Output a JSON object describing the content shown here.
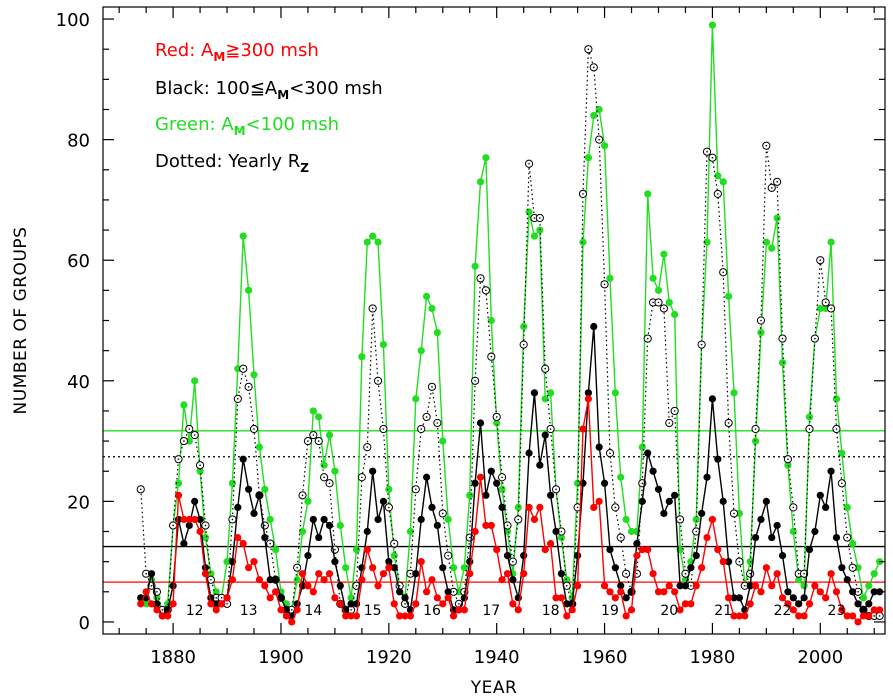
{
  "chart_data": {
    "type": "line",
    "xlabel": "YEAR",
    "ylabel": "NUMBER OF GROUPS",
    "xlim": [
      1867,
      2012
    ],
    "ylim": [
      -2,
      102
    ],
    "xticks": [
      1880,
      1900,
      1920,
      1940,
      1960,
      1980,
      2000
    ],
    "yticks": [
      0,
      20,
      40,
      60,
      80,
      100
    ],
    "grid": false,
    "legend": {
      "position": "top-left",
      "entries": [
        {
          "prefix": "Red: A",
          "sub": "M",
          "suffix": "≧300 msh",
          "color": "#ff0000"
        },
        {
          "prefix": "Black: 100≦A",
          "sub": "M",
          "suffix": "<300 msh",
          "color": "#000000"
        },
        {
          "prefix": "Green: A",
          "sub": "M",
          "suffix": "<100 msh",
          "color": "#22dd22"
        },
        {
          "prefix": "Dotted: Yearly R",
          "sub": "Z",
          "suffix": "",
          "color": "#000000"
        }
      ]
    },
    "cycle_labels": [
      {
        "label": "12",
        "x": 1884
      },
      {
        "label": "13",
        "x": 1894
      },
      {
        "label": "14",
        "x": 1906
      },
      {
        "label": "15",
        "x": 1917
      },
      {
        "label": "16",
        "x": 1928
      },
      {
        "label": "17",
        "x": 1939
      },
      {
        "label": "18",
        "x": 1950
      },
      {
        "label": "19",
        "x": 1961
      },
      {
        "label": "20",
        "x": 1972
      },
      {
        "label": "21",
        "x": 1982
      },
      {
        "label": "22",
        "x": 1993
      },
      {
        "label": "23",
        "x": 2003
      }
    ],
    "hlines": [
      {
        "value": 31.7,
        "color": "#22dd22",
        "style": "solid"
      },
      {
        "value": 27.4,
        "color": "#000000",
        "style": "dotted"
      },
      {
        "value": 12.5,
        "color": "#000000",
        "style": "solid"
      },
      {
        "value": 6.6,
        "color": "#ff0000",
        "style": "solid"
      }
    ],
    "series": [
      {
        "color": "#22dd22",
        "style": "line-dots",
        "x": [
          1874,
          1875,
          1876,
          1877,
          1878,
          1879,
          1880,
          1881,
          1882,
          1883,
          1884,
          1885,
          1886,
          1887,
          1888,
          1889,
          1890,
          1891,
          1892,
          1893,
          1894,
          1895,
          1896,
          1897,
          1898,
          1899,
          1900,
          1901,
          1902,
          1903,
          1904,
          1905,
          1906,
          1907,
          1908,
          1909,
          1910,
          1911,
          1912,
          1913,
          1914,
          1915,
          1916,
          1917,
          1918,
          1919,
          1920,
          1921,
          1922,
          1923,
          1924,
          1925,
          1926,
          1927,
          1928,
          1929,
          1930,
          1931,
          1932,
          1933,
          1934,
          1935,
          1936,
          1937,
          1938,
          1939,
          1940,
          1941,
          1942,
          1943,
          1944,
          1945,
          1946,
          1947,
          1948,
          1949,
          1950,
          1951,
          1952,
          1953,
          1954,
          1955,
          1956,
          1957,
          1958,
          1959,
          1960,
          1961,
          1962,
          1963,
          1964,
          1965,
          1966,
          1967,
          1968,
          1969,
          1970,
          1971,
          1972,
          1973,
          1974,
          1975,
          1976,
          1977,
          1978,
          1979,
          1980,
          1981,
          1982,
          1983,
          1984,
          1985,
          1986,
          1987,
          1988,
          1989,
          1990,
          1991,
          1992,
          1993,
          1994,
          1995,
          1996,
          1997,
          1998,
          1999,
          2000,
          2001,
          2002,
          2003,
          2004,
          2005,
          2006,
          2007,
          2008,
          2009,
          2010,
          2011
        ],
        "y": [
          4,
          3,
          7,
          4,
          2,
          3,
          16,
          23,
          36,
          30,
          40,
          25,
          14,
          8,
          5,
          4,
          10,
          23,
          42,
          64,
          55,
          41,
          29,
          22,
          17,
          12,
          5,
          3,
          2,
          7,
          15,
          20,
          35,
          34,
          26,
          31,
          25,
          16,
          9,
          4,
          12,
          44,
          63,
          64,
          63,
          46,
          22,
          11,
          6,
          4,
          15,
          37,
          45,
          54,
          52,
          48,
          30,
          17,
          9,
          5,
          9,
          21,
          59,
          73,
          77,
          50,
          33,
          22,
          15,
          8,
          19,
          49,
          68,
          64,
          65,
          37,
          38,
          22,
          14,
          7,
          4,
          23,
          63,
          77,
          84,
          85,
          79,
          57,
          38,
          24,
          17,
          15,
          15,
          29,
          71,
          57,
          55,
          61,
          53,
          51,
          12,
          7,
          10,
          17,
          46,
          63,
          99,
          74,
          73,
          54,
          38,
          18,
          6,
          10,
          30,
          48,
          63,
          62,
          67,
          43,
          26,
          15,
          7,
          6,
          34,
          47,
          52,
          52,
          63,
          37,
          28,
          19,
          13,
          9,
          4,
          6,
          8,
          10
        ]
      },
      {
        "color": "#000000",
        "style": "dotted-circles",
        "x": [
          1874,
          1875,
          1876,
          1877,
          1878,
          1879,
          1880,
          1881,
          1882,
          1883,
          1884,
          1885,
          1886,
          1887,
          1888,
          1889,
          1890,
          1891,
          1892,
          1893,
          1894,
          1895,
          1896,
          1897,
          1898,
          1899,
          1900,
          1901,
          1902,
          1903,
          1904,
          1905,
          1906,
          1907,
          1908,
          1909,
          1910,
          1911,
          1912,
          1913,
          1914,
          1915,
          1916,
          1917,
          1918,
          1919,
          1920,
          1921,
          1922,
          1923,
          1924,
          1925,
          1926,
          1927,
          1928,
          1929,
          1930,
          1931,
          1932,
          1933,
          1934,
          1935,
          1936,
          1937,
          1938,
          1939,
          1940,
          1941,
          1942,
          1943,
          1944,
          1945,
          1946,
          1947,
          1948,
          1949,
          1950,
          1951,
          1952,
          1953,
          1954,
          1955,
          1956,
          1957,
          1958,
          1959,
          1960,
          1961,
          1962,
          1963,
          1964,
          1965,
          1966,
          1967,
          1968,
          1969,
          1970,
          1971,
          1972,
          1973,
          1974,
          1975,
          1976,
          1977,
          1978,
          1979,
          1980,
          1981,
          1982,
          1983,
          1984,
          1985,
          1986,
          1987,
          1988,
          1989,
          1990,
          1991,
          1992,
          1993,
          1994,
          1995,
          1996,
          1997,
          1998,
          1999,
          2000,
          2001,
          2002,
          2003,
          2004,
          2005,
          2006,
          2007,
          2008,
          2009,
          2010,
          2011
        ],
        "y": [
          22,
          8,
          6,
          5,
          2,
          2,
          16,
          27,
          30,
          32,
          31,
          26,
          16,
          7,
          4,
          4,
          3,
          17,
          37,
          42,
          39,
          32,
          21,
          16,
          13,
          7,
          4,
          2,
          2,
          9,
          21,
          30,
          31,
          30,
          24,
          23,
          12,
          3,
          2,
          2,
          6,
          24,
          29,
          52,
          40,
          32,
          19,
          13,
          6,
          3,
          8,
          22,
          32,
          34,
          39,
          33,
          18,
          11,
          5,
          3,
          5,
          14,
          40,
          57,
          55,
          44,
          34,
          24,
          16,
          10,
          17,
          46,
          76,
          67,
          67,
          42,
          32,
          22,
          15,
          6,
          3,
          19,
          71,
          95,
          92,
          80,
          56,
          28,
          19,
          14,
          8,
          5,
          8,
          23,
          47,
          53,
          53,
          52,
          33,
          35,
          17,
          8,
          6,
          15,
          46,
          78,
          77,
          71,
          58,
          33,
          18,
          10,
          6,
          8,
          32,
          50,
          79,
          72,
          73,
          47,
          27,
          19,
          8,
          8,
          32,
          47,
          60,
          53,
          52,
          32,
          23,
          14,
          9,
          5,
          2,
          1,
          1,
          1
        ]
      },
      {
        "color": "#000000",
        "style": "line-dots",
        "x": [
          1874,
          1875,
          1876,
          1877,
          1878,
          1879,
          1880,
          1881,
          1882,
          1883,
          1884,
          1885,
          1886,
          1887,
          1888,
          1889,
          1890,
          1891,
          1892,
          1893,
          1894,
          1895,
          1896,
          1897,
          1898,
          1899,
          1900,
          1901,
          1902,
          1903,
          1904,
          1905,
          1906,
          1907,
          1908,
          1909,
          1910,
          1911,
          1912,
          1913,
          1914,
          1915,
          1916,
          1917,
          1918,
          1919,
          1920,
          1921,
          1922,
          1923,
          1924,
          1925,
          1926,
          1927,
          1928,
          1929,
          1930,
          1931,
          1932,
          1933,
          1934,
          1935,
          1936,
          1937,
          1938,
          1939,
          1940,
          1941,
          1942,
          1943,
          1944,
          1945,
          1946,
          1947,
          1948,
          1949,
          1950,
          1951,
          1952,
          1953,
          1954,
          1955,
          1956,
          1957,
          1958,
          1959,
          1960,
          1961,
          1962,
          1963,
          1964,
          1965,
          1966,
          1967,
          1968,
          1969,
          1970,
          1971,
          1972,
          1973,
          1974,
          1975,
          1976,
          1977,
          1978,
          1979,
          1980,
          1981,
          1982,
          1983,
          1984,
          1985,
          1986,
          1987,
          1988,
          1989,
          1990,
          1991,
          1992,
          1993,
          1994,
          1995,
          1996,
          1997,
          1998,
          1999,
          2000,
          2001,
          2002,
          2003,
          2004,
          2005,
          2006,
          2007,
          2008,
          2009,
          2010,
          2011
        ],
        "y": [
          4,
          4,
          8,
          3,
          1,
          2,
          6,
          17,
          13,
          16,
          20,
          17,
          9,
          4,
          3,
          3,
          4,
          10,
          19,
          27,
          22,
          18,
          21,
          14,
          7,
          7,
          4,
          2,
          1,
          3,
          6,
          11,
          17,
          14,
          17,
          16,
          10,
          6,
          2,
          3,
          3,
          9,
          15,
          25,
          17,
          20,
          10,
          9,
          5,
          4,
          2,
          8,
          17,
          24,
          19,
          16,
          9,
          5,
          2,
          2,
          4,
          10,
          23,
          33,
          21,
          25,
          23,
          19,
          11,
          7,
          4,
          11,
          28,
          38,
          26,
          31,
          21,
          15,
          8,
          3,
          3,
          11,
          23,
          38,
          49,
          29,
          23,
          12,
          9,
          6,
          4,
          5,
          13,
          20,
          28,
          25,
          22,
          18,
          20,
          21,
          6,
          6,
          9,
          11,
          18,
          24,
          37,
          27,
          20,
          10,
          4,
          4,
          2,
          6,
          14,
          17,
          20,
          14,
          16,
          11,
          5,
          4,
          3,
          4,
          12,
          15,
          21,
          19,
          25,
          14,
          9,
          7,
          5,
          3,
          2,
          3,
          5,
          5
        ]
      },
      {
        "color": "#ff0000",
        "style": "line-dots",
        "x": [
          1874,
          1875,
          1876,
          1877,
          1878,
          1879,
          1880,
          1881,
          1882,
          1883,
          1884,
          1885,
          1886,
          1887,
          1888,
          1889,
          1890,
          1891,
          1892,
          1893,
          1894,
          1895,
          1896,
          1897,
          1898,
          1899,
          1900,
          1901,
          1902,
          1903,
          1904,
          1905,
          1906,
          1907,
          1908,
          1909,
          1910,
          1911,
          1912,
          1913,
          1914,
          1915,
          1916,
          1917,
          1918,
          1919,
          1920,
          1921,
          1922,
          1923,
          1924,
          1925,
          1926,
          1927,
          1928,
          1929,
          1930,
          1931,
          1932,
          1933,
          1934,
          1935,
          1936,
          1937,
          1938,
          1939,
          1940,
          1941,
          1942,
          1943,
          1944,
          1945,
          1946,
          1947,
          1948,
          1949,
          1950,
          1951,
          1952,
          1953,
          1954,
          1955,
          1956,
          1957,
          1958,
          1959,
          1960,
          1961,
          1962,
          1963,
          1964,
          1965,
          1966,
          1967,
          1968,
          1969,
          1970,
          1971,
          1972,
          1973,
          1974,
          1975,
          1976,
          1977,
          1978,
          1979,
          1980,
          1981,
          1982,
          1983,
          1984,
          1985,
          1986,
          1987,
          1988,
          1989,
          1990,
          1991,
          1992,
          1993,
          1994,
          1995,
          1996,
          1997,
          1998,
          1999,
          2000,
          2001,
          2002,
          2003,
          2004,
          2005,
          2006,
          2007,
          2008,
          2009,
          2010,
          2011
        ],
        "y": [
          3,
          5,
          3,
          2,
          1,
          1,
          3,
          21,
          17,
          17,
          17,
          15,
          8,
          3,
          2,
          3,
          4,
          7,
          14,
          13,
          9,
          10,
          7,
          6,
          4,
          5,
          2,
          1,
          0,
          2,
          8,
          6,
          5,
          8,
          7,
          8,
          4,
          3,
          1,
          1,
          1,
          7,
          12,
          9,
          6,
          8,
          9,
          3,
          1,
          1,
          1,
          3,
          10,
          5,
          7,
          4,
          3,
          4,
          1,
          2,
          2,
          8,
          15,
          24,
          16,
          16,
          12,
          7,
          8,
          3,
          2,
          8,
          19,
          17,
          19,
          12,
          13,
          4,
          4,
          1,
          2,
          6,
          32,
          37,
          19,
          20,
          6,
          5,
          4,
          5,
          1,
          2,
          11,
          12,
          12,
          8,
          5,
          5,
          6,
          5,
          2,
          3,
          3,
          6,
          9,
          14,
          17,
          12,
          10,
          4,
          1,
          1,
          1,
          3,
          6,
          5,
          9,
          6,
          8,
          4,
          3,
          2,
          1,
          1,
          3,
          6,
          5,
          4,
          8,
          5,
          2,
          1,
          1,
          0,
          1,
          1,
          2,
          2
        ]
      }
    ]
  }
}
